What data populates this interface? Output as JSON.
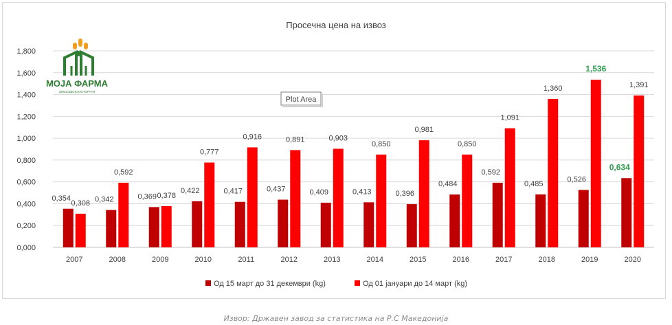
{
  "chart_data": {
    "type": "bar",
    "title": "Просечна цена на извоз",
    "categories": [
      "2007",
      "2008",
      "2009",
      "2010",
      "2011",
      "2012",
      "2013",
      "2014",
      "2015",
      "2016",
      "2017",
      "2018",
      "2019",
      "2020"
    ],
    "series": [
      {
        "name": "Од 15 март до 31 декември (kg)",
        "color": "#c00000",
        "values": [
          0.354,
          0.342,
          0.369,
          0.422,
          0.417,
          0.437,
          0.409,
          0.413,
          0.396,
          0.484,
          0.592,
          0.485,
          0.526,
          0.634
        ],
        "labels": [
          "0,354",
          "0,342",
          "0,369",
          "0,422",
          "0,417",
          "0,437",
          "0,409",
          "0,413",
          "0,396",
          "0,484",
          "0,592",
          "0,485",
          "0,526",
          "0,634"
        ]
      },
      {
        "name": "Од 01 јануари до 14 март (kg)",
        "color": "#ff0000",
        "values": [
          0.308,
          0.592,
          0.378,
          0.777,
          0.916,
          0.891,
          0.903,
          0.85,
          0.981,
          0.85,
          1.091,
          1.36,
          1.536,
          1.391
        ],
        "labels": [
          "0,308",
          "0,592",
          "0,378",
          "0,777",
          "0,916",
          "0,891",
          "0,903",
          "0,850",
          "0,981",
          "0,850",
          "1,091",
          "1,360",
          "1,536",
          "1,391"
        ]
      }
    ],
    "ylim": [
      0,
      1.8
    ],
    "yticks": [
      0,
      0.2,
      0.4,
      0.6,
      0.8,
      1.0,
      1.2,
      1.4,
      1.6,
      1.8
    ],
    "ytick_labels": [
      "0,000",
      "0,200",
      "0,400",
      "0,600",
      "0,800",
      "1,000",
      "1,200",
      "1,400",
      "1,600",
      "1,800"
    ],
    "grid": true,
    "legend_position": "bottom",
    "highlight_color": "#2e9e4f",
    "highlighted_labels": [
      {
        "series": 0,
        "index": 13
      },
      {
        "series": 1,
        "index": 12
      }
    ]
  },
  "tooltip": {
    "text": "Plot Area"
  },
  "logo": {
    "text": "МОЈА ФАРМА",
    "tagline": "ЗЕМЈОДЕЛСКИ ПОРТАЛ"
  },
  "source_note": "Извор: Државен завод за статистика на Р.С Македонија"
}
